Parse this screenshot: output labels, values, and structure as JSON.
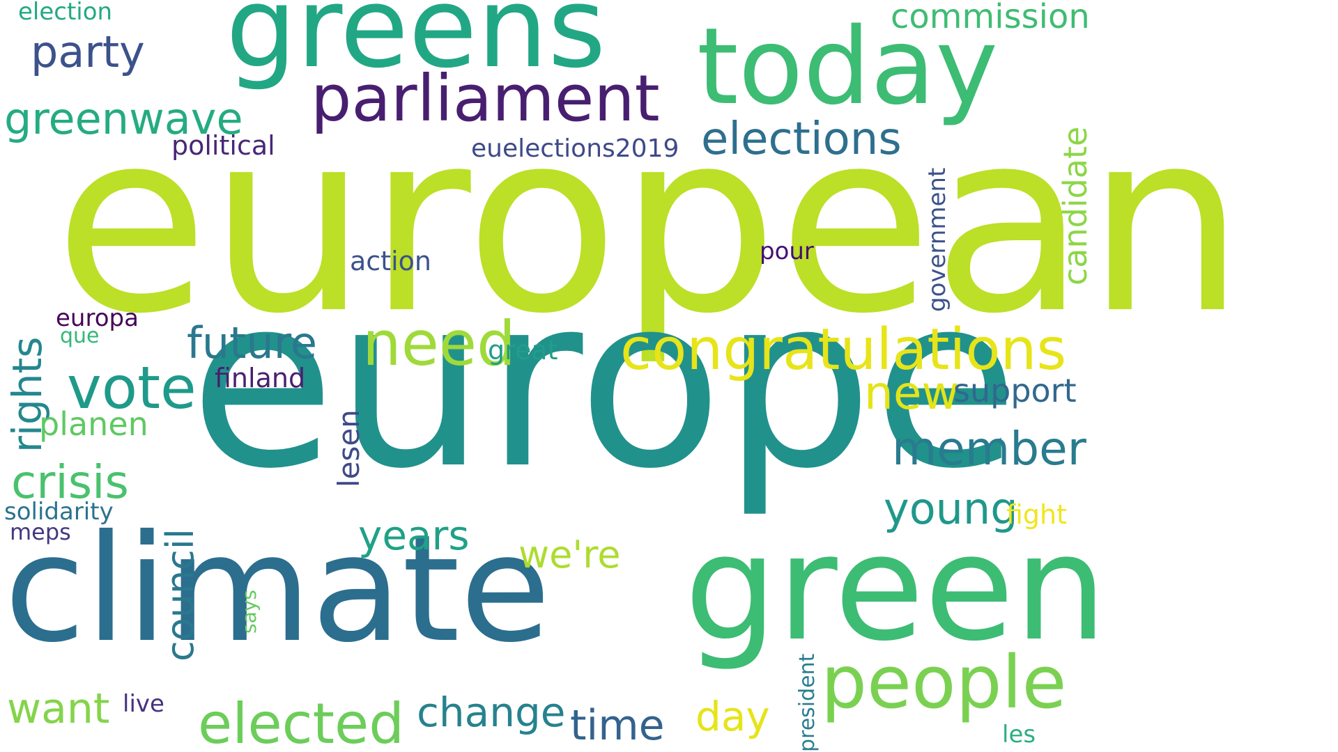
{
  "word_cloud": {
    "words": [
      {
        "text": "european",
        "color": "#bcdf27"
      },
      {
        "text": "europe",
        "color": "#21918c"
      },
      {
        "text": "climate",
        "color": "#2c6e8e"
      },
      {
        "text": "green",
        "color": "#3dbc74"
      },
      {
        "text": "greens",
        "color": "#22a785"
      },
      {
        "text": "today",
        "color": "#3dbc74"
      },
      {
        "text": "parliament",
        "color": "#481f70"
      },
      {
        "text": "congratulations",
        "color": "#e7e419"
      },
      {
        "text": "people",
        "color": "#7ad151"
      },
      {
        "text": "need",
        "color": "#9fda3a"
      },
      {
        "text": "vote",
        "color": "#1f9a8a"
      },
      {
        "text": "elections",
        "color": "#2e6f8e"
      },
      {
        "text": "elected",
        "color": "#6ccd5a"
      },
      {
        "text": "greenwave",
        "color": "#25ab82"
      },
      {
        "text": "party",
        "color": "#3b528b"
      },
      {
        "text": "member",
        "color": "#297b8e"
      },
      {
        "text": "crisis",
        "color": "#4ac16d"
      },
      {
        "text": "future",
        "color": "#2a788e"
      },
      {
        "text": "young",
        "color": "#1f988b"
      },
      {
        "text": "new",
        "color": "#e4e419"
      },
      {
        "text": "commission",
        "color": "#3fbc73"
      },
      {
        "text": "years",
        "color": "#1fa187"
      },
      {
        "text": "change",
        "color": "#26828e"
      },
      {
        "text": "time",
        "color": "#33638d"
      },
      {
        "text": "want",
        "color": "#84d44b"
      },
      {
        "text": "day",
        "color": "#e5e419"
      },
      {
        "text": "we're",
        "color": "#addc30"
      },
      {
        "text": "rights",
        "color": "#24878e"
      },
      {
        "text": "council",
        "color": "#2a788e"
      },
      {
        "text": "candidate",
        "color": "#8bd646"
      },
      {
        "text": "support",
        "color": "#31688e"
      },
      {
        "text": "planen",
        "color": "#5ec962"
      },
      {
        "text": "lesen",
        "color": "#3e4a89"
      },
      {
        "text": "government",
        "color": "#3b528b"
      },
      {
        "text": "action",
        "color": "#3b528b"
      },
      {
        "text": "political",
        "color": "#482677"
      },
      {
        "text": "euelections2019",
        "color": "#3e4989"
      },
      {
        "text": "finland",
        "color": "#481f70"
      },
      {
        "text": "great",
        "color": "#1f9e89"
      },
      {
        "text": "solidarity",
        "color": "#2c728e"
      },
      {
        "text": "europa",
        "color": "#450559"
      },
      {
        "text": "election",
        "color": "#23a983"
      },
      {
        "text": "fight",
        "color": "#f1e51d"
      },
      {
        "text": "pour",
        "color": "#440f76"
      },
      {
        "text": "president",
        "color": "#287d8e"
      },
      {
        "text": "says",
        "color": "#63cb5f"
      },
      {
        "text": "live",
        "color": "#46327e"
      },
      {
        "text": "meps",
        "color": "#453781"
      },
      {
        "text": "que",
        "color": "#35b779"
      },
      {
        "text": "les",
        "color": "#2ab07f"
      }
    ]
  }
}
